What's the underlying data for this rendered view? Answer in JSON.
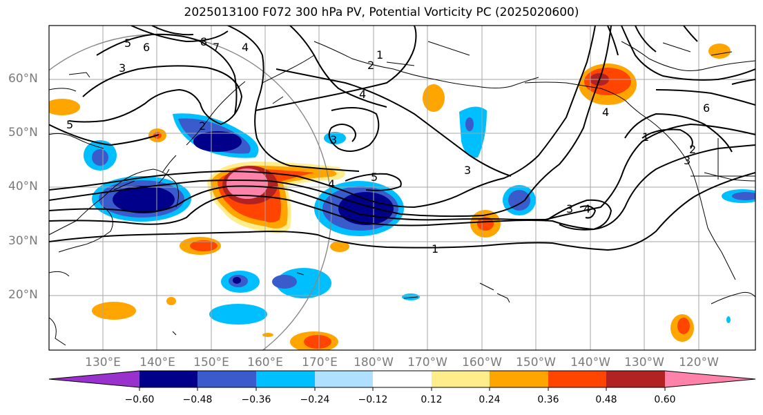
{
  "title": "2025013100 F072 300 hPa PV, Potential Vorticity PC (2025020600)",
  "lat_labels": [
    "60°N",
    "50°N",
    "40°N",
    "30°N",
    "20°N"
  ],
  "lon_labels": [
    "130°E",
    "140°E",
    "150°E",
    "160°E",
    "170°E",
    "180°W",
    "170°W",
    "160°W",
    "150°W",
    "140°W",
    "130°W",
    "120°W"
  ],
  "colorbar": {
    "colors": [
      "#9932cc",
      "#00008b",
      "#3a5bcc",
      "#00bfff",
      "#b0e0ff",
      "#ffffff",
      "#ffec8b",
      "#ffa500",
      "#ff4500",
      "#b22222",
      "#ff82ab"
    ],
    "tick_labels": [
      "−0.60",
      "−0.48",
      "−0.36",
      "−0.24",
      "−0.12",
      "0.12",
      "0.24",
      "0.36",
      "0.48",
      "0.60"
    ]
  },
  "contour_labels": [
    "5",
    "6",
    "8",
    "7",
    "4",
    "3",
    "2",
    "1",
    "2",
    "4",
    "3",
    "5",
    "4",
    "5",
    "3",
    "1",
    "3",
    "4",
    "6",
    "4",
    "1",
    "2",
    "3"
  ]
}
